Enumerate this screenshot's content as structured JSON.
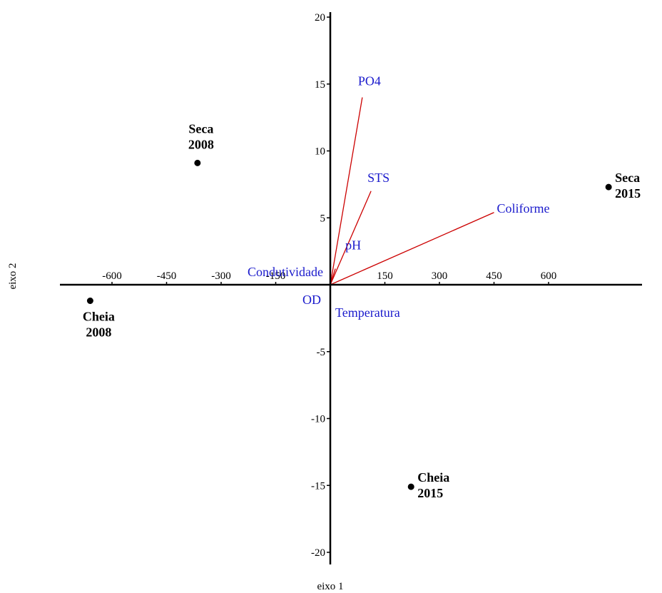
{
  "chart_data": {
    "type": "scatter",
    "subtype": "biplot",
    "title": "",
    "xlabel": "eixo 1",
    "ylabel": "eixo 2",
    "xlim": [
      -710,
      820
    ],
    "ylim": [
      -20.5,
      20.5
    ],
    "xticks": [
      -600,
      -450,
      -300,
      -150,
      150,
      300,
      450,
      600
    ],
    "yticks": [
      -20,
      -15,
      -10,
      -5,
      5,
      10,
      15,
      20
    ],
    "grid": false,
    "points": [
      {
        "label_lines": [
          "Seca",
          "2008"
        ],
        "x": -365,
        "y": 9.1,
        "label_pos": "above"
      },
      {
        "label_lines": [
          "Seca",
          "2015"
        ],
        "x": 765,
        "y": 7.3,
        "label_pos": "right"
      },
      {
        "label_lines": [
          "Cheia",
          "2008"
        ],
        "x": -660,
        "y": -1.2,
        "label_pos": "below"
      },
      {
        "label_lines": [
          "Cheia",
          "2015"
        ],
        "x": 222,
        "y": -15.1,
        "label_pos": "right"
      }
    ],
    "vectors": [
      {
        "name": "PO4",
        "x": 88,
        "y": 14.0
      },
      {
        "name": "STS",
        "x": 112,
        "y": 7.0
      },
      {
        "name": "Coliforme",
        "x": 450,
        "y": 5.4
      },
      {
        "name": "pH",
        "x": 14,
        "y": 1.2
      },
      {
        "name": "Condutividade",
        "x": 0,
        "y": 0
      },
      {
        "name": "OD",
        "x": 0,
        "y": 0
      },
      {
        "name": "Temperatura",
        "x": 0,
        "y": 0
      }
    ],
    "colors": {
      "vector_line": "#cc0000",
      "vector_label": "#1a1acc",
      "axis": "#000000",
      "point": "#000000"
    }
  }
}
